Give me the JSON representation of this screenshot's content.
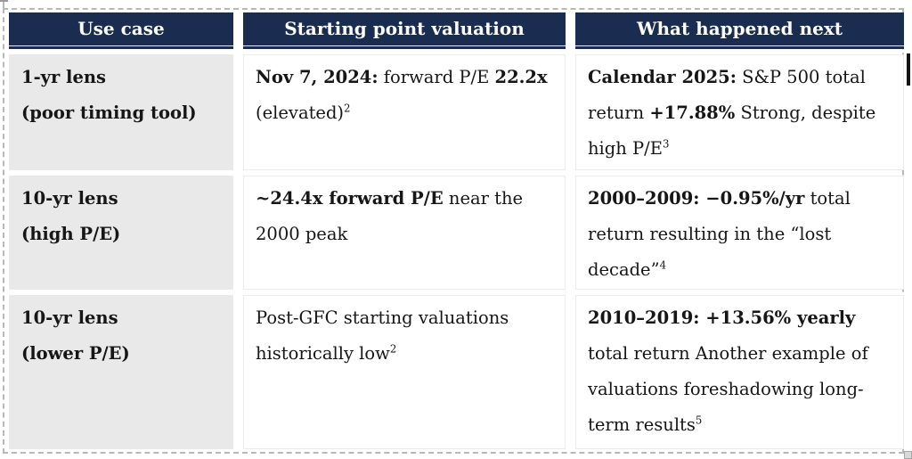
{
  "colors": {
    "header_bg": "#1a2c50",
    "header_text": "#ffffff",
    "header_inner_rule": "#e8ecf2",
    "label_column_bg": "#e9e9e9",
    "body_text": "#161616",
    "cell_border": "#ececec",
    "selection_marquee": "#b8b8b8",
    "text_cursor": "#141414"
  },
  "decorations": {
    "selection_marquee": "dashed selection border around table",
    "text_cursor": "black caret at right edge",
    "resize_handle": "small gray square at bottom-right corner"
  },
  "table": {
    "headers": [
      {
        "label": "Use case"
      },
      {
        "label": "Starting point valuation"
      },
      {
        "label": "What happened next"
      }
    ],
    "rows": [
      {
        "cells": [
          {
            "segments": [
              {
                "t": "1-yr lens",
                "b": true
              },
              {
                "br": true
              },
              {
                "t": "(poor timing tool)",
                "b": true
              }
            ]
          },
          {
            "segments": [
              {
                "t": "Nov 7, 2024:",
                "b": true
              },
              {
                "t": " forward P/E "
              },
              {
                "t": "22.2x",
                "b": true
              },
              {
                "t": " (elevated)"
              },
              {
                "t": "2",
                "sup": true
              }
            ]
          },
          {
            "segments": [
              {
                "t": "Calendar 2025:",
                "b": true
              },
              {
                "t": " S&P 500 total return "
              },
              {
                "t": "+17.88%",
                "b": true
              },
              {
                "t": " Strong, despite high P/E"
              },
              {
                "t": "3",
                "sup": true
              }
            ]
          }
        ]
      },
      {
        "cells": [
          {
            "segments": [
              {
                "t": "10-yr lens",
                "b": true
              },
              {
                "br": true
              },
              {
                "t": "(high P/E)",
                "b": true
              }
            ]
          },
          {
            "segments": [
              {
                "t": "~24.4x forward P/E",
                "b": true
              },
              {
                "t": " near the 2000 peak"
              }
            ]
          },
          {
            "segments": [
              {
                "t": "2000–2009: −0.95%/yr",
                "b": true
              },
              {
                "t": " total return resulting in the “lost decade”"
              },
              {
                "t": "4",
                "sup": true
              }
            ]
          }
        ]
      },
      {
        "cells": [
          {
            "segments": [
              {
                "t": "10-yr lens",
                "b": true
              },
              {
                "br": true
              },
              {
                "t": "(lower P/E)",
                "b": true
              }
            ]
          },
          {
            "segments": [
              {
                "t": "Post-GFC starting valuations historically low"
              },
              {
                "t": "2",
                "sup": true
              }
            ]
          },
          {
            "segments": [
              {
                "t": "2010–2019: +13.56% yearly",
                "b": true
              },
              {
                "t": " total return Another example of valuations foreshadowing long-term results"
              },
              {
                "t": "5",
                "sup": true
              }
            ]
          }
        ]
      }
    ]
  }
}
